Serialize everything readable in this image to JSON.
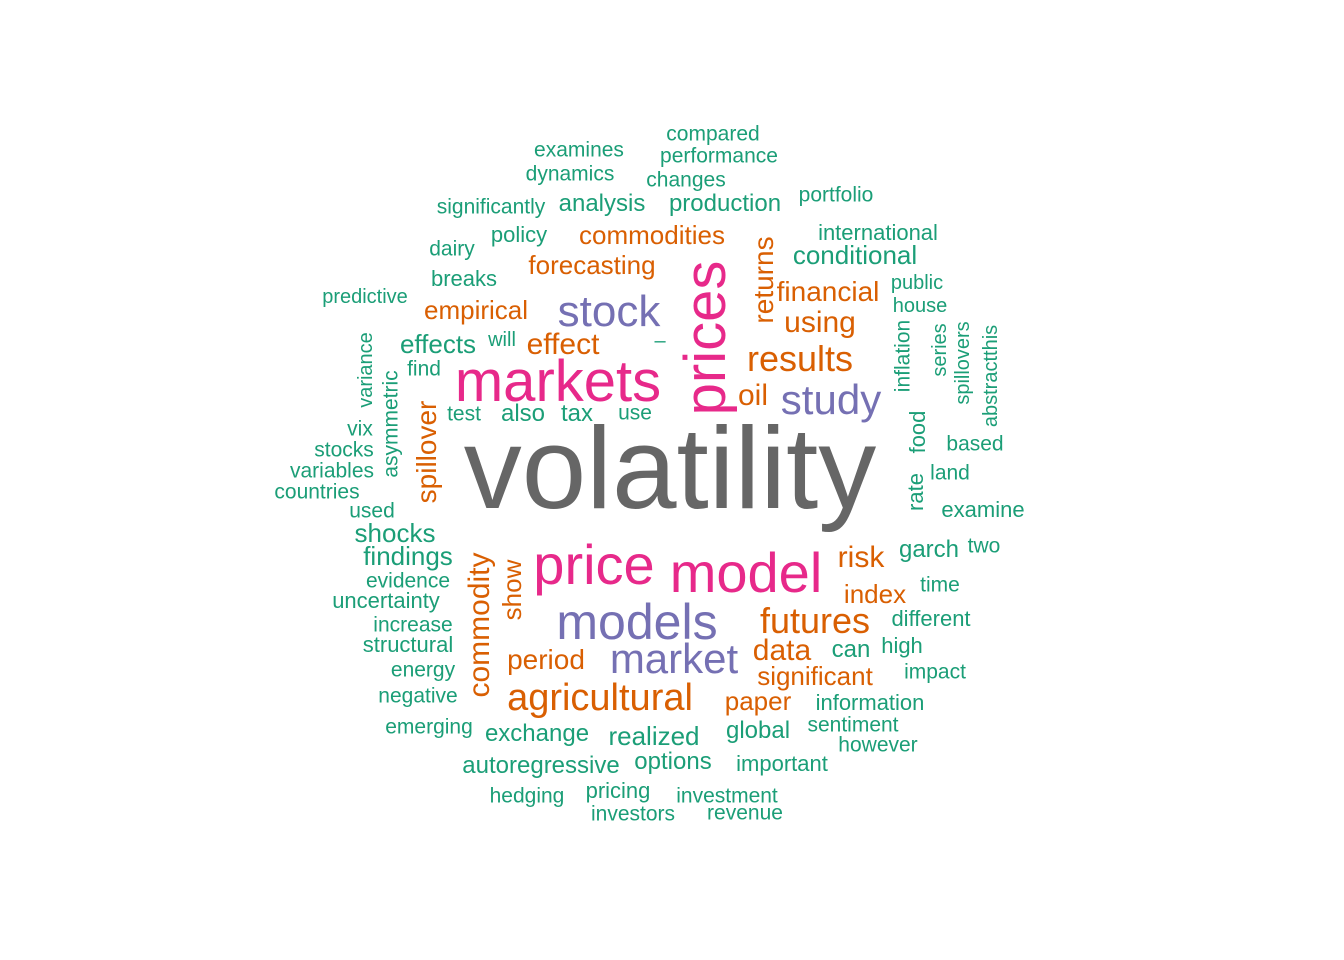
{
  "colors": {
    "background": "#ffffff",
    "gray": "#666666",
    "magenta": "#e7298a",
    "purple": "#7570b3",
    "orange": "#d95f02",
    "green": "#1b9e77"
  },
  "words": [
    {
      "text": "volatility",
      "color": "gray"
    },
    {
      "text": "markets",
      "color": "magenta"
    },
    {
      "text": "prices",
      "color": "magenta"
    },
    {
      "text": "price",
      "color": "magenta"
    },
    {
      "text": "model",
      "color": "magenta"
    },
    {
      "text": "models",
      "color": "purple"
    },
    {
      "text": "stock",
      "color": "purple"
    },
    {
      "text": "study",
      "color": "purple"
    },
    {
      "text": "market",
      "color": "purple"
    },
    {
      "text": "agricultural",
      "color": "orange"
    },
    {
      "text": "futures",
      "color": "orange"
    },
    {
      "text": "results",
      "color": "orange"
    },
    {
      "text": "commodity",
      "color": "orange"
    },
    {
      "text": "spillover",
      "color": "orange"
    },
    {
      "text": "returns",
      "color": "orange"
    },
    {
      "text": "financial",
      "color": "orange"
    },
    {
      "text": "using",
      "color": "orange"
    },
    {
      "text": "oil",
      "color": "orange"
    },
    {
      "text": "commodities",
      "color": "orange"
    },
    {
      "text": "forecasting",
      "color": "orange"
    },
    {
      "text": "empirical",
      "color": "orange"
    },
    {
      "text": "effect",
      "color": "orange"
    },
    {
      "text": "risk",
      "color": "orange"
    },
    {
      "text": "index",
      "color": "orange"
    },
    {
      "text": "data",
      "color": "orange"
    },
    {
      "text": "significant",
      "color": "orange"
    },
    {
      "text": "period",
      "color": "orange"
    },
    {
      "text": "paper",
      "color": "orange"
    },
    {
      "text": "show",
      "color": "orange"
    },
    {
      "text": "compared",
      "color": "green"
    },
    {
      "text": "examines",
      "color": "green"
    },
    {
      "text": "performance",
      "color": "green"
    },
    {
      "text": "dynamics",
      "color": "green"
    },
    {
      "text": "changes",
      "color": "green"
    },
    {
      "text": "portfolio",
      "color": "green"
    },
    {
      "text": "significantly",
      "color": "green"
    },
    {
      "text": "analysis",
      "color": "green"
    },
    {
      "text": "production",
      "color": "green"
    },
    {
      "text": "international",
      "color": "green"
    },
    {
      "text": "policy",
      "color": "green"
    },
    {
      "text": "dairy",
      "color": "green"
    },
    {
      "text": "conditional",
      "color": "green"
    },
    {
      "text": "breaks",
      "color": "green"
    },
    {
      "text": "public",
      "color": "green"
    },
    {
      "text": "predictive",
      "color": "green"
    },
    {
      "text": "house",
      "color": "green"
    },
    {
      "text": "effects",
      "color": "green"
    },
    {
      "text": "will",
      "color": "green"
    },
    {
      "text": "inflation",
      "color": "green"
    },
    {
      "text": "series",
      "color": "green"
    },
    {
      "text": "spillovers",
      "color": "green"
    },
    {
      "text": "abstractthis",
      "color": "green"
    },
    {
      "text": "variance",
      "color": "green"
    },
    {
      "text": "find",
      "color": "green"
    },
    {
      "text": "asymmetric",
      "color": "green"
    },
    {
      "text": "test",
      "color": "green"
    },
    {
      "text": "also",
      "color": "green"
    },
    {
      "text": "tax",
      "color": "green"
    },
    {
      "text": "use",
      "color": "green"
    },
    {
      "text": "vix",
      "color": "green"
    },
    {
      "text": "stocks",
      "color": "green"
    },
    {
      "text": "variables",
      "color": "green"
    },
    {
      "text": "countries",
      "color": "green"
    },
    {
      "text": "based",
      "color": "green"
    },
    {
      "text": "food",
      "color": "green"
    },
    {
      "text": "rate",
      "color": "green"
    },
    {
      "text": "land",
      "color": "green"
    },
    {
      "text": "used",
      "color": "green"
    },
    {
      "text": "examine",
      "color": "green"
    },
    {
      "text": "shocks",
      "color": "green"
    },
    {
      "text": "findings",
      "color": "green"
    },
    {
      "text": "garch",
      "color": "green"
    },
    {
      "text": "two",
      "color": "green"
    },
    {
      "text": "evidence",
      "color": "green"
    },
    {
      "text": "time",
      "color": "green"
    },
    {
      "text": "uncertainty",
      "color": "green"
    },
    {
      "text": "different",
      "color": "green"
    },
    {
      "text": "increase",
      "color": "green"
    },
    {
      "text": "structural",
      "color": "green"
    },
    {
      "text": "high",
      "color": "green"
    },
    {
      "text": "can",
      "color": "green"
    },
    {
      "text": "impact",
      "color": "green"
    },
    {
      "text": "energy",
      "color": "green"
    },
    {
      "text": "negative",
      "color": "green"
    },
    {
      "text": "information",
      "color": "green"
    },
    {
      "text": "emerging",
      "color": "green"
    },
    {
      "text": "sentiment",
      "color": "green"
    },
    {
      "text": "exchange",
      "color": "green"
    },
    {
      "text": "realized",
      "color": "green"
    },
    {
      "text": "global",
      "color": "green"
    },
    {
      "text": "however",
      "color": "green"
    },
    {
      "text": "autoregressive",
      "color": "green"
    },
    {
      "text": "options",
      "color": "green"
    },
    {
      "text": "important",
      "color": "green"
    },
    {
      "text": "hedging",
      "color": "green"
    },
    {
      "text": "pricing",
      "color": "green"
    },
    {
      "text": "investment",
      "color": "green"
    },
    {
      "text": "investors",
      "color": "green"
    },
    {
      "text": "revenue",
      "color": "green"
    },
    {
      "text": "–",
      "color": "green"
    }
  ]
}
